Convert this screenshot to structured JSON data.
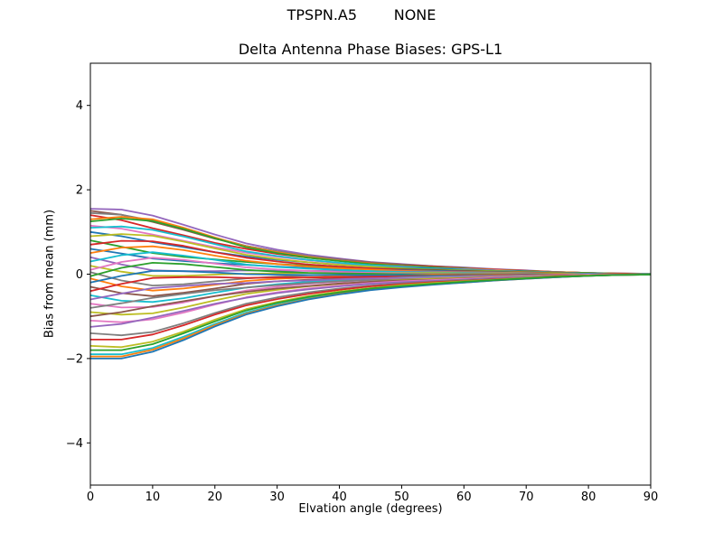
{
  "figure": {
    "background": "#ffffff"
  },
  "chart_data": {
    "type": "line",
    "suptitle": "TPSPN.A5        NONE",
    "title": "Delta Antenna Phase Biases: GPS-L1",
    "xlabel": "Elvation angle (degrees)",
    "ylabel": "Bias from mean (mm)",
    "xlim": [
      0,
      90
    ],
    "ylim": [
      -5,
      5
    ],
    "grid": false,
    "legend": "none",
    "axes_box": true,
    "spine_color": "#000000",
    "text_color": "#000000",
    "line_width": 1.8,
    "xticks": [
      0,
      10,
      20,
      30,
      40,
      50,
      60,
      70,
      80,
      90
    ],
    "xtick_labels": [
      "0",
      "10",
      "20",
      "30",
      "40",
      "50",
      "60",
      "70",
      "80",
      "90"
    ],
    "yticks": [
      -4,
      -2,
      0,
      2,
      4
    ],
    "ytick_labels": [
      "−4",
      "−2",
      "0",
      "2",
      "4"
    ],
    "x": [
      0,
      5,
      10,
      15,
      20,
      25,
      30,
      35,
      40,
      45,
      50,
      55,
      60,
      65,
      70,
      75,
      80,
      85,
      90
    ],
    "series": [
      {
        "name": "line-01",
        "color": "#9467bd",
        "values": [
          1.55,
          1.53,
          1.39,
          1.17,
          0.94,
          0.73,
          0.58,
          0.46,
          0.37,
          0.29,
          0.24,
          0.19,
          0.16,
          0.12,
          0.09,
          0.05,
          0.03,
          0.02,
          0.01
        ]
      },
      {
        "name": "line-02",
        "color": "#8c564b",
        "values": [
          1.5,
          1.41,
          1.24,
          1.05,
          0.84,
          0.67,
          0.54,
          0.43,
          0.35,
          0.28,
          0.23,
          0.19,
          0.15,
          0.11,
          0.08,
          0.05,
          0.03,
          0.02,
          0.01
        ]
      },
      {
        "name": "line-03",
        "color": "#7f7f7f",
        "values": [
          1.45,
          1.41,
          1.27,
          1.08,
          0.86,
          0.67,
          0.54,
          0.43,
          0.34,
          0.27,
          0.22,
          0.18,
          0.15,
          0.11,
          0.08,
          0.05,
          0.03,
          0.01,
          0.01
        ]
      },
      {
        "name": "line-04",
        "color": "#d62728",
        "values": [
          1.4,
          1.28,
          1.09,
          0.92,
          0.74,
          0.6,
          0.48,
          0.39,
          0.32,
          0.26,
          0.21,
          0.18,
          0.14,
          0.11,
          0.08,
          0.05,
          0.03,
          0.01,
          0.01
        ]
      },
      {
        "name": "line-05",
        "color": "#ff7f0e",
        "values": [
          1.3,
          1.36,
          1.3,
          1.1,
          0.87,
          0.66,
          0.52,
          0.41,
          0.32,
          0.25,
          0.2,
          0.16,
          0.13,
          0.1,
          0.07,
          0.05,
          0.03,
          0.01,
          0.01
        ]
      },
      {
        "name": "line-06",
        "color": "#2ca02c",
        "values": [
          1.25,
          1.32,
          1.26,
          1.07,
          0.85,
          0.64,
          0.5,
          0.39,
          0.31,
          0.24,
          0.2,
          0.16,
          0.13,
          0.09,
          0.07,
          0.04,
          0.03,
          0.01,
          0.01
        ]
      },
      {
        "name": "line-07",
        "color": "#e377c2",
        "values": [
          1.15,
          1.08,
          0.94,
          0.79,
          0.64,
          0.51,
          0.41,
          0.33,
          0.26,
          0.21,
          0.18,
          0.14,
          0.12,
          0.09,
          0.06,
          0.04,
          0.02,
          0.01,
          0.01
        ]
      },
      {
        "name": "line-08",
        "color": "#17becf",
        "values": [
          1.1,
          1.13,
          1.05,
          0.89,
          0.71,
          0.54,
          0.43,
          0.34,
          0.27,
          0.21,
          0.17,
          0.14,
          0.11,
          0.08,
          0.06,
          0.04,
          0.02,
          0.01,
          0.01
        ]
      },
      {
        "name": "line-09",
        "color": "#1f77b4",
        "values": [
          1.0,
          0.9,
          0.76,
          0.64,
          0.52,
          0.42,
          0.34,
          0.28,
          0.22,
          0.18,
          0.15,
          0.13,
          0.1,
          0.08,
          0.06,
          0.04,
          0.02,
          0.01,
          0.01
        ]
      },
      {
        "name": "line-10",
        "color": "#bcbd22",
        "values": [
          0.9,
          0.95,
          0.91,
          0.77,
          0.61,
          0.46,
          0.36,
          0.28,
          0.22,
          0.18,
          0.14,
          0.11,
          0.09,
          0.07,
          0.05,
          0.03,
          0.02,
          0.01,
          0.0
        ]
      },
      {
        "name": "line-11",
        "color": "#2ca02c",
        "values": [
          0.8,
          0.65,
          0.5,
          0.41,
          0.35,
          0.29,
          0.24,
          0.2,
          0.17,
          0.14,
          0.12,
          0.1,
          0.08,
          0.06,
          0.04,
          0.03,
          0.02,
          0.01,
          0.0
        ]
      },
      {
        "name": "line-12",
        "color": "#d62728",
        "values": [
          0.7,
          0.79,
          0.78,
          0.67,
          0.52,
          0.39,
          0.3,
          0.23,
          0.18,
          0.14,
          0.11,
          0.09,
          0.07,
          0.05,
          0.04,
          0.02,
          0.01,
          0.01,
          0.0
        ]
      },
      {
        "name": "line-13",
        "color": "#1f77b4",
        "values": [
          0.6,
          0.49,
          0.37,
          0.31,
          0.26,
          0.22,
          0.18,
          0.15,
          0.13,
          0.11,
          0.09,
          0.08,
          0.06,
          0.05,
          0.03,
          0.02,
          0.01,
          0.01,
          0.0
        ]
      },
      {
        "name": "line-14",
        "color": "#ff7f0e",
        "values": [
          0.5,
          0.63,
          0.66,
          0.57,
          0.44,
          0.32,
          0.24,
          0.18,
          0.14,
          0.11,
          0.08,
          0.06,
          0.05,
          0.04,
          0.03,
          0.02,
          0.01,
          0.01,
          0.0
        ]
      },
      {
        "name": "line-15",
        "color": "#9467bd",
        "values": [
          0.4,
          0.23,
          0.09,
          0.07,
          0.07,
          0.09,
          0.08,
          0.08,
          0.07,
          0.06,
          0.06,
          0.05,
          0.04,
          0.03,
          0.02,
          0.01,
          0.01,
          0.0,
          0.0
        ]
      },
      {
        "name": "line-16",
        "color": "#17becf",
        "values": [
          0.3,
          0.45,
          0.52,
          0.44,
          0.34,
          0.23,
          0.17,
          0.13,
          0.1,
          0.07,
          0.05,
          0.04,
          0.03,
          0.02,
          0.02,
          0.01,
          0.01,
          0.0,
          0.0
        ]
      },
      {
        "name": "line-17",
        "color": "#bcbd22",
        "values": [
          0.2,
          0.06,
          -0.04,
          -0.04,
          -0.01,
          0.01,
          0.02,
          0.03,
          0.03,
          0.03,
          0.03,
          0.03,
          0.02,
          0.02,
          0.01,
          0.01,
          0.0,
          0.0,
          0.0
        ]
      },
      {
        "name": "line-18",
        "color": "#e377c2",
        "values": [
          0.1,
          0.29,
          0.39,
          0.34,
          0.25,
          0.16,
          0.11,
          0.08,
          0.05,
          0.03,
          0.02,
          0.01,
          0.01,
          0.01,
          0.01,
          0.0,
          0.0,
          0.0,
          0.0
        ]
      },
      {
        "name": "line-19",
        "color": "#7f7f7f",
        "values": [
          0.05,
          -0.15,
          -0.27,
          -0.24,
          -0.17,
          -0.1,
          -0.06,
          -0.03,
          -0.02,
          -0.01,
          0.0,
          0.0,
          0.0,
          0.0,
          0.0,
          0.0,
          0.0,
          0.0,
          0.0
        ]
      },
      {
        "name": "line-20",
        "color": "#2ca02c",
        "values": [
          -0.05,
          0.15,
          0.27,
          0.24,
          0.17,
          0.1,
          0.06,
          0.03,
          0.02,
          0.01,
          0.0,
          0.0,
          0.0,
          0.0,
          0.0,
          0.0,
          0.0,
          0.0,
          0.0
        ]
      },
      {
        "name": "line-21",
        "color": "#ff7f0e",
        "values": [
          -0.1,
          -0.29,
          -0.39,
          -0.34,
          -0.25,
          -0.16,
          -0.11,
          -0.08,
          -0.05,
          -0.03,
          -0.02,
          -0.01,
          -0.01,
          -0.01,
          -0.01,
          0.0,
          0.0,
          0.0,
          0.0
        ]
      },
      {
        "name": "line-22",
        "color": "#1f77b4",
        "values": [
          -0.2,
          -0.04,
          0.08,
          0.07,
          0.04,
          0.0,
          -0.01,
          -0.02,
          -0.02,
          -0.03,
          -0.02,
          -0.03,
          -0.02,
          -0.02,
          -0.01,
          -0.01,
          0.0,
          0.0,
          0.0
        ]
      },
      {
        "name": "line-23",
        "color": "#8c564b",
        "values": [
          -0.3,
          -0.45,
          -0.52,
          -0.44,
          -0.34,
          -0.23,
          -0.17,
          -0.13,
          -0.1,
          -0.07,
          -0.05,
          -0.04,
          -0.03,
          -0.02,
          -0.02,
          -0.01,
          -0.01,
          0.0,
          0.0
        ]
      },
      {
        "name": "line-24",
        "color": "#d62728",
        "values": [
          -0.4,
          -0.23,
          -0.09,
          -0.07,
          -0.07,
          -0.09,
          -0.08,
          -0.08,
          -0.07,
          -0.06,
          -0.06,
          -0.05,
          -0.04,
          -0.03,
          -0.02,
          -0.01,
          -0.01,
          0.0,
          0.0
        ]
      },
      {
        "name": "line-25",
        "color": "#17becf",
        "values": [
          -0.5,
          -0.63,
          -0.66,
          -0.57,
          -0.44,
          -0.32,
          -0.24,
          -0.18,
          -0.14,
          -0.11,
          -0.08,
          -0.06,
          -0.05,
          -0.04,
          -0.03,
          -0.02,
          -0.01,
          -0.01,
          0.0
        ]
      },
      {
        "name": "line-26",
        "color": "#9467bd",
        "values": [
          -0.6,
          -0.46,
          -0.33,
          -0.28,
          -0.23,
          -0.21,
          -0.17,
          -0.15,
          -0.12,
          -0.1,
          -0.09,
          -0.08,
          -0.06,
          -0.05,
          -0.03,
          -0.02,
          -0.01,
          -0.01,
          0.0
        ]
      },
      {
        "name": "line-27",
        "color": "#e377c2",
        "values": [
          -0.7,
          -0.79,
          -0.78,
          -0.67,
          -0.52,
          -0.39,
          -0.3,
          -0.23,
          -0.18,
          -0.14,
          -0.11,
          -0.09,
          -0.07,
          -0.05,
          -0.04,
          -0.02,
          -0.01,
          -0.01,
          0.0
        ]
      },
      {
        "name": "line-28",
        "color": "#7f7f7f",
        "values": [
          -0.8,
          -0.69,
          -0.56,
          -0.47,
          -0.38,
          -0.32,
          -0.26,
          -0.21,
          -0.17,
          -0.14,
          -0.12,
          -0.1,
          -0.08,
          -0.06,
          -0.04,
          -0.03,
          -0.02,
          -0.01,
          0.0
        ]
      },
      {
        "name": "line-29",
        "color": "#bcbd22",
        "values": [
          -0.9,
          -0.96,
          -0.93,
          -0.79,
          -0.62,
          -0.47,
          -0.37,
          -0.29,
          -0.23,
          -0.18,
          -0.14,
          -0.11,
          -0.09,
          -0.07,
          -0.05,
          -0.03,
          -0.02,
          -0.01,
          0.0
        ]
      },
      {
        "name": "line-30",
        "color": "#8c564b",
        "values": [
          -1.0,
          -0.9,
          -0.76,
          -0.64,
          -0.52,
          -0.42,
          -0.34,
          -0.28,
          -0.22,
          -0.18,
          -0.15,
          -0.13,
          -0.1,
          -0.08,
          -0.06,
          -0.04,
          -0.02,
          -0.01,
          -0.01
        ]
      },
      {
        "name": "line-31",
        "color": "#e377c2",
        "values": [
          -1.1,
          -1.14,
          -1.07,
          -0.91,
          -0.72,
          -0.55,
          -0.43,
          -0.34,
          -0.27,
          -0.21,
          -0.17,
          -0.14,
          -0.11,
          -0.08,
          -0.06,
          -0.04,
          -0.02,
          -0.01,
          -0.01
        ]
      },
      {
        "name": "line-32",
        "color": "#9467bd",
        "values": [
          -1.25,
          -1.18,
          -1.03,
          -0.87,
          -0.7,
          -0.56,
          -0.45,
          -0.36,
          -0.29,
          -0.23,
          -0.19,
          -0.16,
          -0.13,
          -0.09,
          -0.07,
          -0.04,
          -0.03,
          -0.01,
          -0.01
        ]
      },
      {
        "name": "line-33",
        "color": "#7f7f7f",
        "values": [
          -1.4,
          -1.45,
          -1.37,
          -1.16,
          -0.92,
          -0.7,
          -0.55,
          -0.43,
          -0.34,
          -0.27,
          -0.22,
          -0.18,
          -0.14,
          -0.11,
          -0.08,
          -0.05,
          -0.03,
          -0.01,
          -0.01
        ]
      },
      {
        "name": "line-34",
        "color": "#d62728",
        "values": [
          -1.55,
          -1.55,
          -1.43,
          -1.21,
          -0.96,
          -0.74,
          -0.59,
          -0.47,
          -0.37,
          -0.29,
          -0.24,
          -0.19,
          -0.16,
          -0.12,
          -0.09,
          -0.05,
          -0.03,
          -0.02,
          -0.01
        ]
      },
      {
        "name": "line-35",
        "color": "#bcbd22",
        "values": [
          -1.7,
          -1.73,
          -1.6,
          -1.36,
          -1.08,
          -0.83,
          -0.66,
          -0.52,
          -0.41,
          -0.33,
          -0.26,
          -0.21,
          -0.17,
          -0.13,
          -0.09,
          -0.06,
          -0.03,
          -0.02,
          -0.01
        ]
      },
      {
        "name": "line-36",
        "color": "#17becf",
        "values": [
          -1.9,
          -1.9,
          -1.75,
          -1.48,
          -1.18,
          -0.91,
          -0.72,
          -0.57,
          -0.46,
          -0.36,
          -0.29,
          -0.24,
          -0.19,
          -0.14,
          -0.1,
          -0.07,
          -0.04,
          -0.02,
          -0.01
        ]
      },
      {
        "name": "line-37",
        "color": "#ff7f0e",
        "values": [
          -1.95,
          -1.95,
          -1.79,
          -1.52,
          -1.21,
          -0.94,
          -0.74,
          -0.59,
          -0.47,
          -0.37,
          -0.3,
          -0.24,
          -0.2,
          -0.15,
          -0.11,
          -0.07,
          -0.04,
          -0.02,
          -0.01
        ]
      },
      {
        "name": "line-38",
        "color": "#1f77b4",
        "values": [
          -2.0,
          -2.0,
          -1.84,
          -1.56,
          -1.24,
          -0.96,
          -0.76,
          -0.6,
          -0.48,
          -0.38,
          -0.31,
          -0.25,
          -0.2,
          -0.15,
          -0.11,
          -0.07,
          -0.04,
          -0.02,
          -0.01
        ]
      },
      {
        "name": "line-39",
        "color": "#2ca02c",
        "values": [
          -1.8,
          -1.8,
          -1.66,
          -1.4,
          -1.12,
          -0.86,
          -0.68,
          -0.54,
          -0.43,
          -0.34,
          -0.28,
          -0.23,
          -0.18,
          -0.14,
          -0.1,
          -0.06,
          -0.04,
          -0.02,
          -0.01
        ]
      }
    ]
  }
}
